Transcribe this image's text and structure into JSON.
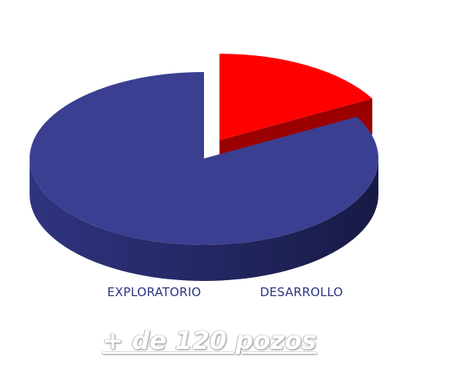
{
  "chart_data": {
    "type": "pie",
    "three_d": true,
    "exploded_slice": "DESARROLLO",
    "categories": [
      "EXPLORATORIO",
      "DESARROLLO"
    ],
    "values": [
      83,
      17
    ],
    "colors": [
      "#3b3f91",
      "#ff0000"
    ],
    "side_colors": [
      "#262a6b",
      "#9b0000"
    ],
    "legend_position": "bottom",
    "legend_color": "#2e3483"
  },
  "caption": {
    "text": "+ de 120 pozos"
  }
}
